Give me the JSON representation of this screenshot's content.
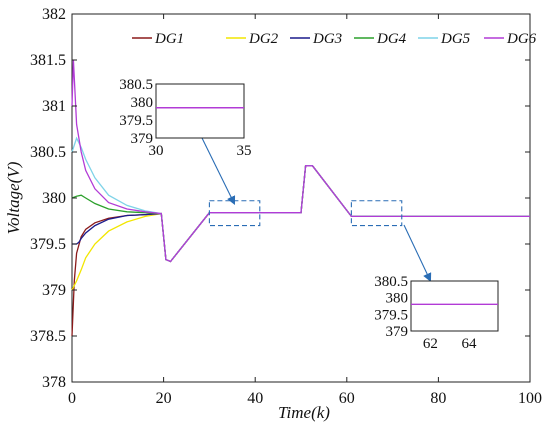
{
  "chart_data": {
    "type": "line",
    "xlabel": "Time(k)",
    "ylabel": "Voltage(V)",
    "xlim": [
      0,
      100
    ],
    "ylim": [
      378,
      382
    ],
    "xticks": [
      "0",
      "20",
      "40",
      "60",
      "80",
      "100"
    ],
    "yticks": [
      "378",
      "378.5",
      "379",
      "379.5",
      "380",
      "380.5",
      "381",
      "381.5",
      "382"
    ],
    "grid": false,
    "legend_position": "top",
    "series": [
      {
        "name": "DG1",
        "color": "#8b1a1a",
        "x": [
          0,
          0.5,
          1,
          2,
          3,
          5,
          8,
          12,
          16,
          19.5,
          20.5,
          21.5,
          30,
          50,
          51,
          52.5,
          61,
          100
        ],
        "y": [
          378.5,
          379.1,
          379.4,
          379.58,
          379.66,
          379.73,
          379.78,
          379.81,
          379.82,
          379.83,
          379.33,
          379.31,
          379.84,
          379.84,
          380.35,
          380.35,
          379.8,
          379.8
        ]
      },
      {
        "name": "DG2",
        "color": "#f2e600",
        "x": [
          0,
          0.5,
          1,
          2,
          3,
          5,
          8,
          12,
          16,
          19.5,
          20.5,
          21.5,
          30,
          50,
          51,
          52.5,
          61,
          100
        ],
        "y": [
          379.0,
          379.05,
          379.1,
          379.22,
          379.35,
          379.5,
          379.64,
          379.74,
          379.8,
          379.83,
          379.33,
          379.31,
          379.84,
          379.84,
          380.35,
          380.35,
          379.8,
          379.8
        ]
      },
      {
        "name": "DG3",
        "color": "#1a1a8c",
        "x": [
          0,
          1,
          1.5,
          2,
          3,
          5,
          8,
          12,
          16,
          19.5,
          20.5,
          21.5,
          30,
          50,
          51,
          52.5,
          61,
          100
        ],
        "y": [
          379.5,
          379.5,
          379.52,
          379.56,
          379.62,
          379.7,
          379.77,
          379.81,
          379.82,
          379.83,
          379.33,
          379.31,
          379.84,
          379.84,
          380.35,
          380.35,
          379.8,
          379.8
        ]
      },
      {
        "name": "DG4",
        "color": "#2ca02c",
        "x": [
          0,
          1,
          2,
          3,
          5,
          8,
          12,
          16,
          19.5,
          20.5,
          21.5,
          30,
          50,
          51,
          52.5,
          61,
          100
        ],
        "y": [
          380.0,
          380.02,
          380.03,
          380.0,
          379.94,
          379.88,
          379.85,
          379.84,
          379.83,
          379.33,
          379.31,
          379.84,
          379.84,
          380.35,
          380.35,
          379.8,
          379.8
        ]
      },
      {
        "name": "DG5",
        "color": "#7fd3e8",
        "x": [
          0,
          1,
          2,
          3,
          5,
          8,
          12,
          16,
          19.5,
          20.5,
          21.5,
          30,
          50,
          51,
          52.5,
          61,
          100
        ],
        "y": [
          380.5,
          380.65,
          380.55,
          380.42,
          380.22,
          380.03,
          379.92,
          379.86,
          379.83,
          379.33,
          379.31,
          379.84,
          379.84,
          380.35,
          380.35,
          379.8,
          379.8
        ]
      },
      {
        "name": "DG6",
        "color": "#b23bd6",
        "x": [
          0,
          0.3,
          1,
          2,
          3,
          5,
          8,
          12,
          16,
          19.5,
          20.5,
          21.5,
          30,
          50,
          51,
          52.5,
          61,
          100
        ],
        "y": [
          381.0,
          381.5,
          380.8,
          380.5,
          380.3,
          380.1,
          379.95,
          379.88,
          379.85,
          379.83,
          379.33,
          379.31,
          379.84,
          379.84,
          380.35,
          380.35,
          379.8,
          379.8
        ]
      }
    ],
    "insets": [
      {
        "xticks": [
          "30",
          "35"
        ],
        "yticks": [
          "380.5",
          "380",
          "379.5",
          "379"
        ],
        "xlim": [
          30,
          35
        ],
        "ylim": [
          379,
          380.5
        ],
        "level": 379.84,
        "zoom_region_x": [
          30,
          41
        ],
        "zoom_region_y": [
          379.7,
          379.97
        ]
      },
      {
        "xticks": [
          "62",
          "64"
        ],
        "yticks": [
          "380.5",
          "380",
          "379.5",
          "379"
        ],
        "xlim": [
          61,
          65.5
        ],
        "ylim": [
          379,
          380.5
        ],
        "level": 379.8,
        "zoom_region_x": [
          61,
          72
        ],
        "zoom_region_y": [
          379.7,
          379.97
        ]
      }
    ]
  }
}
